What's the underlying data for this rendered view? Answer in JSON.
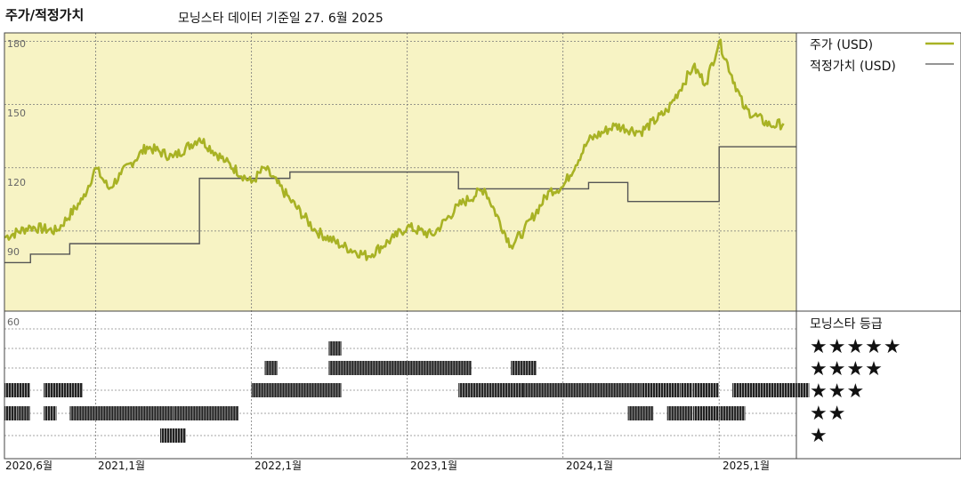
{
  "header": {
    "title": "주가/적정가치",
    "source": "모닝스타 데이터 기준일 27. 6월 2025"
  },
  "legend": {
    "price_label": "주가 (USD)",
    "fair_value_label": "적정가치 (USD)",
    "rating_title": "모닝스타 등급",
    "price_color": "#a8b224",
    "fair_value_color": "#555555",
    "plot_bg": "#f7f3c4"
  },
  "stars": [
    "★★★★★",
    "★★★★",
    "★★★",
    "★★",
    "★"
  ],
  "chart_data": [
    {
      "type": "line",
      "title": "",
      "xlabel": "",
      "ylabel": "",
      "x_ticks": [
        "2020,6월",
        "2021,1월",
        "2022,1월",
        "2023,1월",
        "2024,1월",
        "2025,1월"
      ],
      "y_ticks": [
        180,
        150,
        120,
        90
      ],
      "ylim": [
        52,
        184
      ],
      "xlim": [
        "2020-06",
        "2025-07"
      ],
      "grid": true,
      "series": [
        {
          "name": "주가 (USD)",
          "x": [
            "2020-06",
            "2020-08",
            "2020-10",
            "2020-12",
            "2021-01",
            "2021-02",
            "2021-03",
            "2021-05",
            "2021-07",
            "2021-09",
            "2021-11",
            "2022-01",
            "2022-02",
            "2022-04",
            "2022-06",
            "2022-08",
            "2022-10",
            "2022-12",
            "2023-01",
            "2023-03",
            "2023-05",
            "2023-07",
            "2023-09",
            "2023-10",
            "2023-12",
            "2024-01",
            "2024-03",
            "2024-05",
            "2024-07",
            "2024-09",
            "2024-11",
            "2024-12",
            "2025-01",
            "2025-03",
            "2025-05",
            "2025-06"
          ],
          "values": [
            87,
            92,
            90,
            105,
            120,
            110,
            117,
            130,
            125,
            134,
            123,
            113,
            120,
            105,
            90,
            83,
            78,
            87,
            92,
            88,
            102,
            110,
            83,
            90,
            109,
            111,
            133,
            140,
            137,
            147,
            168,
            160,
            180,
            148,
            140,
            141
          ]
        },
        {
          "name": "적정가치 (USD)",
          "x": [
            "2020-06",
            "2020-08",
            "2020-11",
            "2021-06",
            "2021-09",
            "2022-02",
            "2022-04",
            "2022-12",
            "2023-05",
            "2023-09",
            "2024-03",
            "2024-06",
            "2024-09",
            "2025-01",
            "2025-07"
          ],
          "values": [
            75,
            79,
            84,
            84,
            115,
            115,
            118,
            118,
            110,
            110,
            113,
            104,
            104,
            130,
            130
          ]
        }
      ]
    },
    {
      "type": "bar",
      "title": "",
      "xlabel": "",
      "ylabel": "",
      "y_tick": [
        60
      ],
      "y_categories": [
        "★★★★★",
        "★★★★",
        "★★★",
        "★★",
        "★"
      ],
      "series": [
        {
          "name": "★★★★★",
          "periods": [
            [
              "2022-07",
              "2022-07"
            ]
          ]
        },
        {
          "name": "★★★★",
          "periods": [
            [
              "2022-02",
              "2022-02"
            ],
            [
              "2022-07",
              "2023-05"
            ],
            [
              "2023-09",
              "2023-10"
            ]
          ]
        },
        {
          "name": "★★★",
          "periods": [
            [
              "2020-06",
              "2020-07"
            ],
            [
              "2020-09",
              "2020-11"
            ],
            [
              "2022-01",
              "2022-02"
            ],
            [
              "2022-02",
              "2022-07"
            ],
            [
              "2023-05",
              "2023-09"
            ],
            [
              "2023-10",
              "2024-06"
            ],
            [
              "2024-07",
              "2024-09"
            ],
            [
              "2024-10",
              "2024-10"
            ],
            [
              "2024-11",
              "2024-12"
            ],
            [
              "2025-02",
              "2025-07"
            ]
          ]
        },
        {
          "name": "★★",
          "periods": [
            [
              "2020-06",
              "2020-06"
            ],
            [
              "2020-07",
              "2020-07"
            ],
            [
              "2020-09",
              "2020-09"
            ],
            [
              "2020-11",
              "2021-06"
            ],
            [
              "2021-07",
              "2021-11"
            ],
            [
              "2024-06",
              "2024-07"
            ],
            [
              "2024-09",
              "2024-10"
            ],
            [
              "2024-11",
              "2024-12"
            ],
            [
              "2025-01",
              "2025-02"
            ]
          ]
        },
        {
          "name": "★",
          "periods": [
            [
              "2021-06",
              "2021-07"
            ]
          ]
        }
      ]
    }
  ]
}
